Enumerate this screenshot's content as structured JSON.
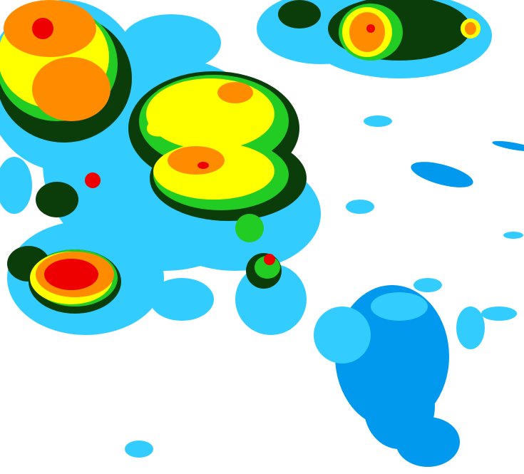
{
  "map": {
    "background": "#ffffff",
    "levels": [
      {
        "color": "#0099ee"
      },
      {
        "color": "#33ccff"
      },
      {
        "color": "#0b3d0b"
      },
      {
        "color": "#22cc22"
      },
      {
        "color": "#ffff00"
      },
      {
        "color": "#ff8c00"
      },
      {
        "color": "#ee0000"
      }
    ]
  }
}
